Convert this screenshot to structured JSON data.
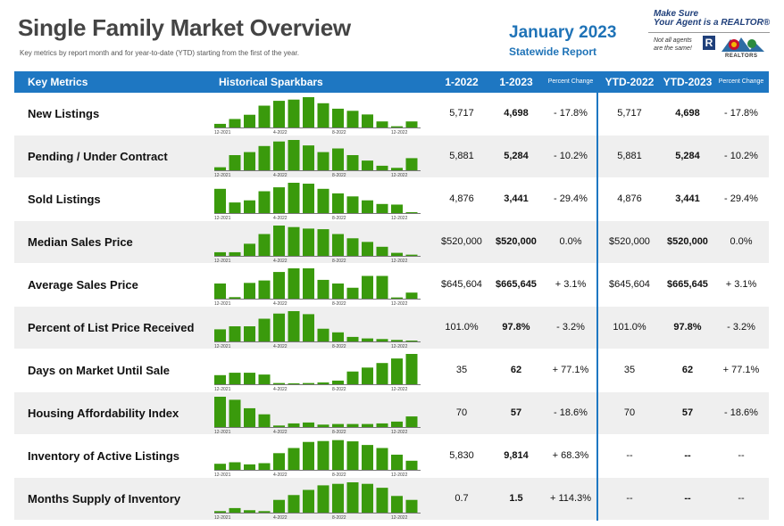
{
  "header": {
    "title": "Single Family Market Overview",
    "subtitle": "Key metrics by report month and for year-to-date (YTD) starting from the first of the year.",
    "report_month": "January 2023",
    "report_scope": "Statewide Report"
  },
  "logo": {
    "line1": "Make Sure",
    "line2": "Your Agent is a REALTOR®",
    "line3": "Not all agents",
    "line4": "are the same!",
    "r_mark": "R",
    "org": "REALTORS"
  },
  "colors": {
    "header_bar": "#1e77c2",
    "bar_green": "#3a9a0c",
    "row_shade": "#efefef",
    "accent_text": "#1f73b7"
  },
  "columns": {
    "key_metrics": "Key Metrics",
    "sparkbars": "Historical Sparkbars",
    "m_prev": "1-2022",
    "m_curr": "1-2023",
    "m_pct": "Percent Change",
    "ytd_prev": "YTD-2022",
    "ytd_curr": "YTD-2023",
    "ytd_pct": "Percent Change"
  },
  "spark_axis_labels": [
    "12-2021",
    "4-2022",
    "8-2022",
    "12-2022"
  ],
  "rows": [
    {
      "label": "New Listings",
      "m_prev": "5,717",
      "m_curr": "4,698",
      "m_pct": "- 17.8%",
      "ytd_prev": "5,717",
      "ytd_curr": "4,698",
      "ytd_pct": "- 17.8%",
      "bars": [
        0.12,
        0.28,
        0.42,
        0.72,
        0.88,
        0.92,
        1.0,
        0.8,
        0.62,
        0.55,
        0.43,
        0.2,
        0.04,
        0.2
      ]
    },
    {
      "label": "Pending / Under Contract",
      "m_prev": "5,881",
      "m_curr": "5,284",
      "m_pct": "- 10.2%",
      "ytd_prev": "5,881",
      "ytd_curr": "5,284",
      "ytd_pct": "- 10.2%",
      "bars": [
        0.1,
        0.5,
        0.6,
        0.8,
        0.95,
        1.0,
        0.82,
        0.6,
        0.72,
        0.5,
        0.32,
        0.15,
        0.08,
        0.4
      ]
    },
    {
      "label": "Sold Listings",
      "m_prev": "4,876",
      "m_curr": "3,441",
      "m_pct": "- 29.4%",
      "ytd_prev": "4,876",
      "ytd_curr": "3,441",
      "ytd_pct": "- 29.4%",
      "bars": [
        0.8,
        0.35,
        0.42,
        0.72,
        0.85,
        1.0,
        0.97,
        0.8,
        0.65,
        0.55,
        0.42,
        0.3,
        0.28,
        0.02
      ]
    },
    {
      "label": "Median Sales Price",
      "m_prev": "$520,000",
      "m_curr": "$520,000",
      "m_pct": "0.0%",
      "ytd_prev": "$520,000",
      "ytd_curr": "$520,000",
      "ytd_pct": "0.0%",
      "bars": [
        0.12,
        0.12,
        0.4,
        0.72,
        1.0,
        0.95,
        0.9,
        0.88,
        0.72,
        0.58,
        0.46,
        0.3,
        0.1,
        0.04
      ]
    },
    {
      "label": "Average Sales Price",
      "m_prev": "$645,604",
      "m_curr": "$665,645",
      "m_pct": "+ 3.1%",
      "ytd_prev": "$645,604",
      "ytd_curr": "$665,645",
      "ytd_pct": "+ 3.1%",
      "bars": [
        0.5,
        0.05,
        0.52,
        0.6,
        0.88,
        1.0,
        1.0,
        0.62,
        0.5,
        0.36,
        0.75,
        0.75,
        0.04,
        0.2
      ]
    },
    {
      "label": "Percent of List Price Received",
      "m_prev": "101.0%",
      "m_curr": "97.8%",
      "m_pct": "- 3.2%",
      "ytd_prev": "101.0%",
      "ytd_curr": "97.8%",
      "ytd_pct": "- 3.2%",
      "bars": [
        0.4,
        0.5,
        0.5,
        0.75,
        0.92,
        1.0,
        0.9,
        0.42,
        0.3,
        0.15,
        0.1,
        0.08,
        0.05,
        0.02
      ]
    },
    {
      "label": "Days on Market Until Sale",
      "m_prev": "35",
      "m_curr": "62",
      "m_pct": "+ 77.1%",
      "ytd_prev": "35",
      "ytd_curr": "62",
      "ytd_pct": "+ 77.1%",
      "bars": [
        0.3,
        0.38,
        0.38,
        0.32,
        0.04,
        0.03,
        0.04,
        0.06,
        0.12,
        0.42,
        0.55,
        0.7,
        0.85,
        1.0
      ]
    },
    {
      "label": "Housing Affordability Index",
      "m_prev": "70",
      "m_curr": "57",
      "m_pct": "- 18.6%",
      "ytd_prev": "70",
      "ytd_curr": "57",
      "ytd_pct": "- 18.6%",
      "bars": [
        1.0,
        0.9,
        0.62,
        0.42,
        0.05,
        0.12,
        0.15,
        0.08,
        0.1,
        0.1,
        0.1,
        0.12,
        0.18,
        0.35
      ]
    },
    {
      "label": "Inventory of Active Listings",
      "m_prev": "5,830",
      "m_curr": "9,814",
      "m_pct": "+ 68.3%",
      "ytd_prev": "--",
      "ytd_curr": "--",
      "ytd_pct": "--",
      "bars": [
        0.2,
        0.25,
        0.18,
        0.22,
        0.55,
        0.72,
        0.92,
        0.95,
        0.98,
        0.94,
        0.82,
        0.72,
        0.5,
        0.3
      ]
    },
    {
      "label": "Months Supply of Inventory",
      "m_prev": "0.7",
      "m_curr": "1.5",
      "m_pct": "+ 114.3%",
      "ytd_prev": "--",
      "ytd_curr": "--",
      "ytd_pct": "--",
      "bars": [
        0.05,
        0.15,
        0.08,
        0.05,
        0.42,
        0.58,
        0.75,
        0.9,
        0.95,
        1.0,
        0.95,
        0.82,
        0.55,
        0.42
      ]
    }
  ]
}
